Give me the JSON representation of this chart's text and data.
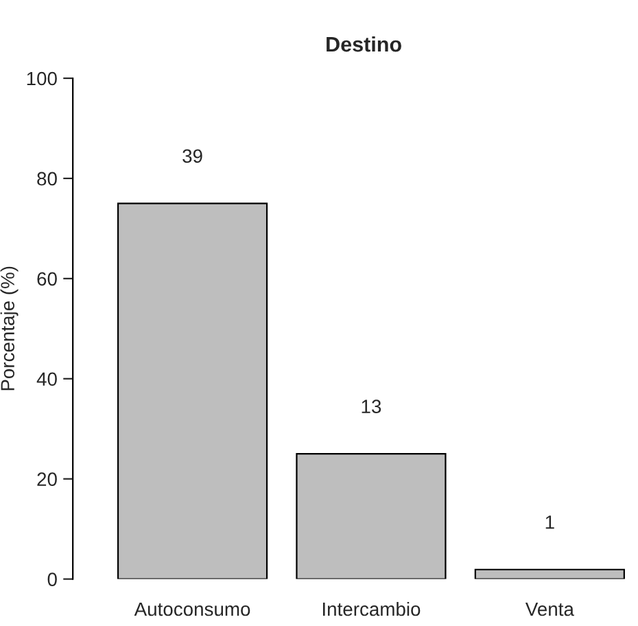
{
  "chart_data": {
    "type": "bar",
    "title": "Destino",
    "ylabel": "Porcentaje (%)",
    "categories": [
      "Autoconsumo",
      "Intercambio",
      "Venta"
    ],
    "values": [
      75,
      25,
      1.9
    ],
    "annotations": [
      "39",
      "13",
      "1"
    ],
    "color": "#bebebe",
    "ylim": [
      0,
      100
    ],
    "yticks": [
      0,
      20,
      40,
      60,
      80,
      100
    ],
    "grid": false
  }
}
